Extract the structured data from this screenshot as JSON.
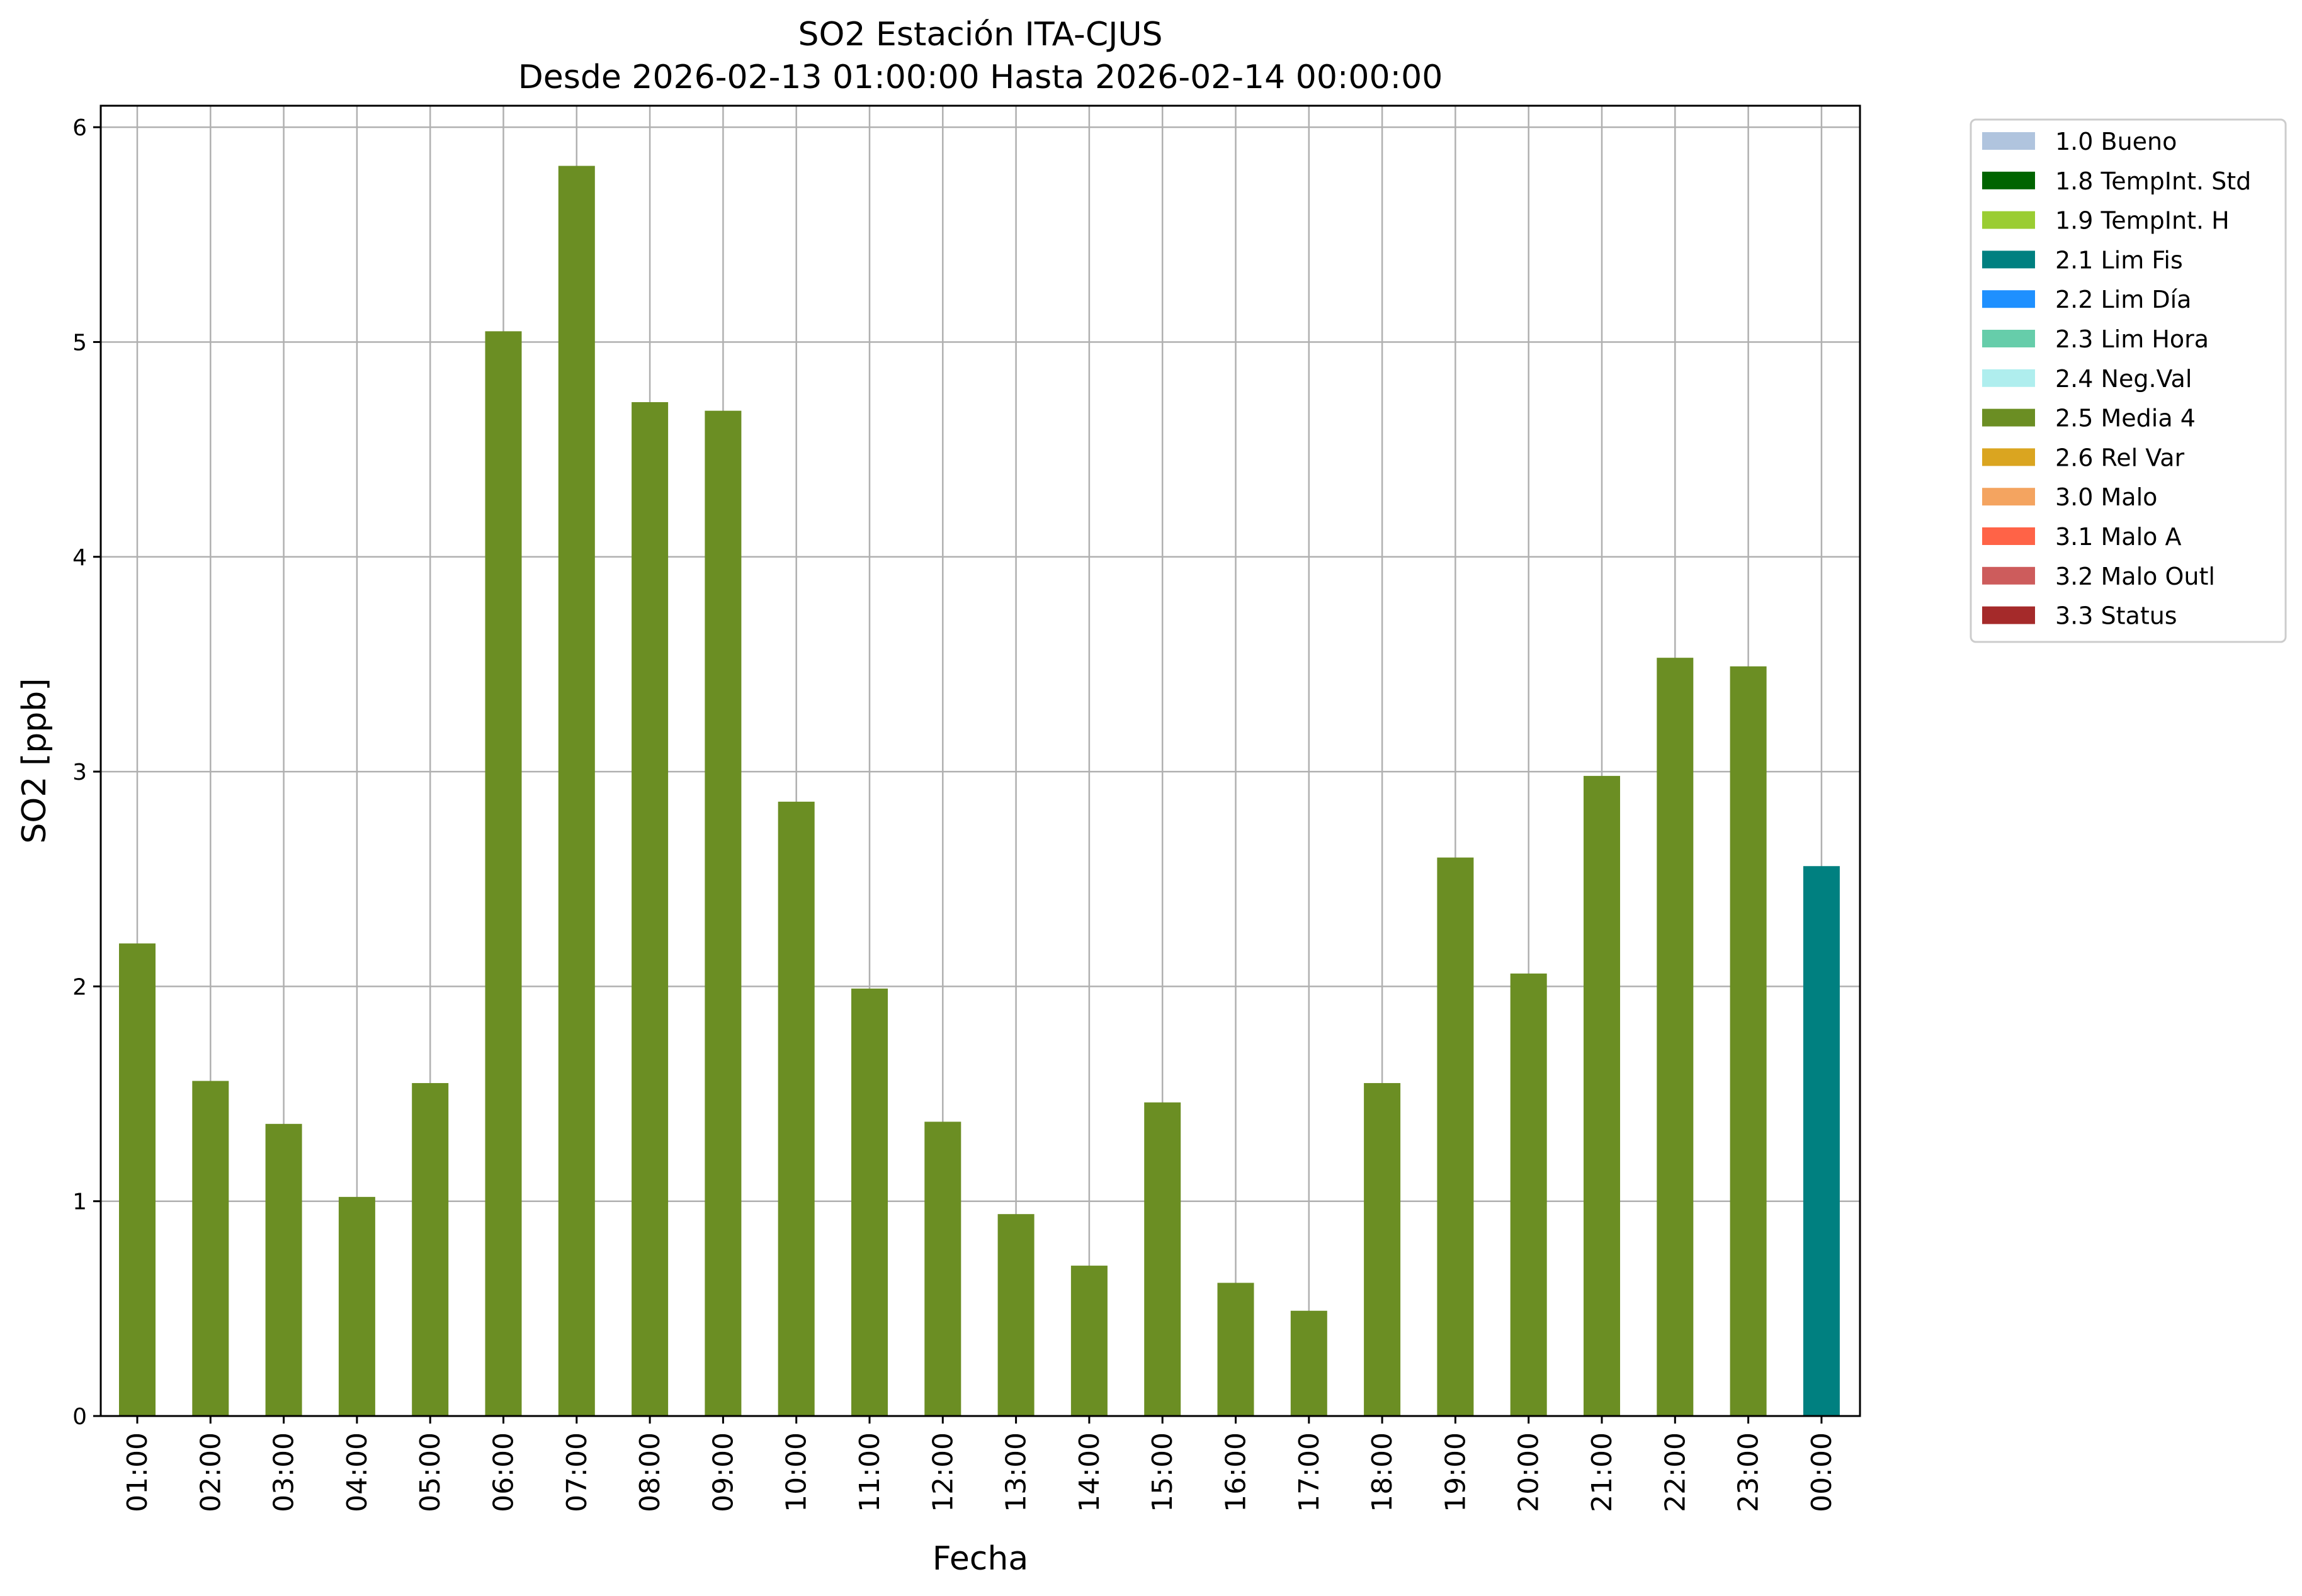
{
  "chart_data": {
    "type": "bar",
    "title": "SO2 Estación ITA-CJUS",
    "subtitle": "Desde 2026-02-13 01:00:00 Hasta 2026-02-14 00:00:00",
    "xlabel": "Fecha",
    "ylabel": "SO2 [ppb]",
    "ylim": [
      0,
      6.1
    ],
    "yticks": [
      0,
      1,
      2,
      3,
      4,
      5,
      6
    ],
    "grid": true,
    "legend_position": "outside-top-right",
    "categories": [
      "01:00",
      "02:00",
      "03:00",
      "04:00",
      "05:00",
      "06:00",
      "07:00",
      "08:00",
      "09:00",
      "10:00",
      "11:00",
      "12:00",
      "13:00",
      "14:00",
      "15:00",
      "16:00",
      "17:00",
      "18:00",
      "19:00",
      "20:00",
      "21:00",
      "22:00",
      "23:00",
      "00:00"
    ],
    "values": [
      2.2,
      1.56,
      1.36,
      1.02,
      1.55,
      5.05,
      5.82,
      4.72,
      4.68,
      2.86,
      1.99,
      1.37,
      0.94,
      0.7,
      1.46,
      0.62,
      0.49,
      1.55,
      2.6,
      2.06,
      2.98,
      3.53,
      3.49,
      2.56
    ],
    "flags": [
      "2.5 Media 4",
      "2.5 Media 4",
      "2.5 Media 4",
      "2.5 Media 4",
      "2.5 Media 4",
      "2.5 Media 4",
      "2.5 Media 4",
      "2.5 Media 4",
      "2.5 Media 4",
      "2.5 Media 4",
      "2.5 Media 4",
      "2.5 Media 4",
      "2.5 Media 4",
      "2.5 Media 4",
      "2.5 Media 4",
      "2.5 Media 4",
      "2.5 Media 4",
      "2.5 Media 4",
      "2.5 Media 4",
      "2.5 Media 4",
      "2.5 Media 4",
      "2.5 Media 4",
      "2.5 Media 4",
      "2.1 Lim Fis"
    ],
    "legend": [
      {
        "label": "1.0 Bueno",
        "color": "#b0c4de"
      },
      {
        "label": "1.8 TempInt. Std",
        "color": "#006400"
      },
      {
        "label": "1.9 TempInt. H",
        "color": "#9acd32"
      },
      {
        "label": "2.1 Lim Fis",
        "color": "#008080"
      },
      {
        "label": "2.2 Lim Día",
        "color": "#1e90ff"
      },
      {
        "label": "2.3 Lim Hora",
        "color": "#66cdaa"
      },
      {
        "label": "2.4 Neg.Val",
        "color": "#afeeee"
      },
      {
        "label": "2.5 Media 4",
        "color": "#6b8e23"
      },
      {
        "label": "2.6 Rel Var",
        "color": "#daa520"
      },
      {
        "label": "3.0 Malo",
        "color": "#f4a460"
      },
      {
        "label": "3.1 Malo A",
        "color": "#ff6347"
      },
      {
        "label": "3.2 Malo Outl",
        "color": "#cd5c5c"
      },
      {
        "label": "3.3 Status",
        "color": "#a52a2a"
      }
    ]
  }
}
